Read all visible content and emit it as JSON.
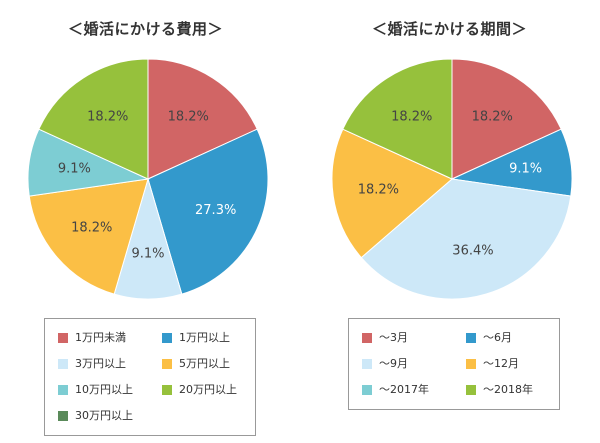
{
  "chart_data": [
    {
      "type": "pie",
      "title": "＜婚活にかける費用＞",
      "slices": [
        {
          "label": "1万円未満",
          "value": 18.2,
          "display": "18.2%",
          "color": "#d16565"
        },
        {
          "label": "1万円以上",
          "value": 27.3,
          "display": "27.3%",
          "color": "#3399cc"
        },
        {
          "label": "3万円以上",
          "value": 9.1,
          "display": "9.1%",
          "color": "#cde8f8"
        },
        {
          "label": "5万円以上",
          "value": 18.2,
          "display": "18.2%",
          "color": "#fbbf45"
        },
        {
          "label": "10万円以上",
          "value": 9.1,
          "display": "9.1%",
          "color": "#7dcdd3"
        },
        {
          "label": "20万円以上",
          "value": 18.2,
          "display": "18.2%",
          "color": "#96c13c"
        },
        {
          "label": "30万円以上",
          "value": 0,
          "display": "",
          "color": "#5a8a5a"
        }
      ],
      "legend": [
        "1万円未満",
        "1万円以上",
        "3万円以上",
        "5万円以上",
        "10万円以上",
        "20万円以上",
        "30万円以上"
      ],
      "legend_placement": "bottom"
    },
    {
      "type": "pie",
      "title": "＜婚活にかける期間＞",
      "slices": [
        {
          "label": "～3月",
          "value": 18.2,
          "display": "18.2%",
          "color": "#d16565"
        },
        {
          "label": "～6月",
          "value": 9.1,
          "display": "9.1%",
          "color": "#3399cc"
        },
        {
          "label": "～9月",
          "value": 36.4,
          "display": "36.4%",
          "color": "#cde8f8"
        },
        {
          "label": "～12月",
          "value": 18.2,
          "display": "18.2%",
          "color": "#fbbf45"
        },
        {
          "label": "～2017年",
          "value": 0,
          "display": "",
          "color": "#7dcdd3"
        },
        {
          "label": "～2018年",
          "value": 18.2,
          "display": "18.2%",
          "color": "#96c13c"
        }
      ],
      "legend": [
        "～3月",
        "～6月",
        "～9月",
        "～12月",
        "～2017年",
        "～2018年"
      ],
      "legend_placement": "bottom"
    }
  ]
}
